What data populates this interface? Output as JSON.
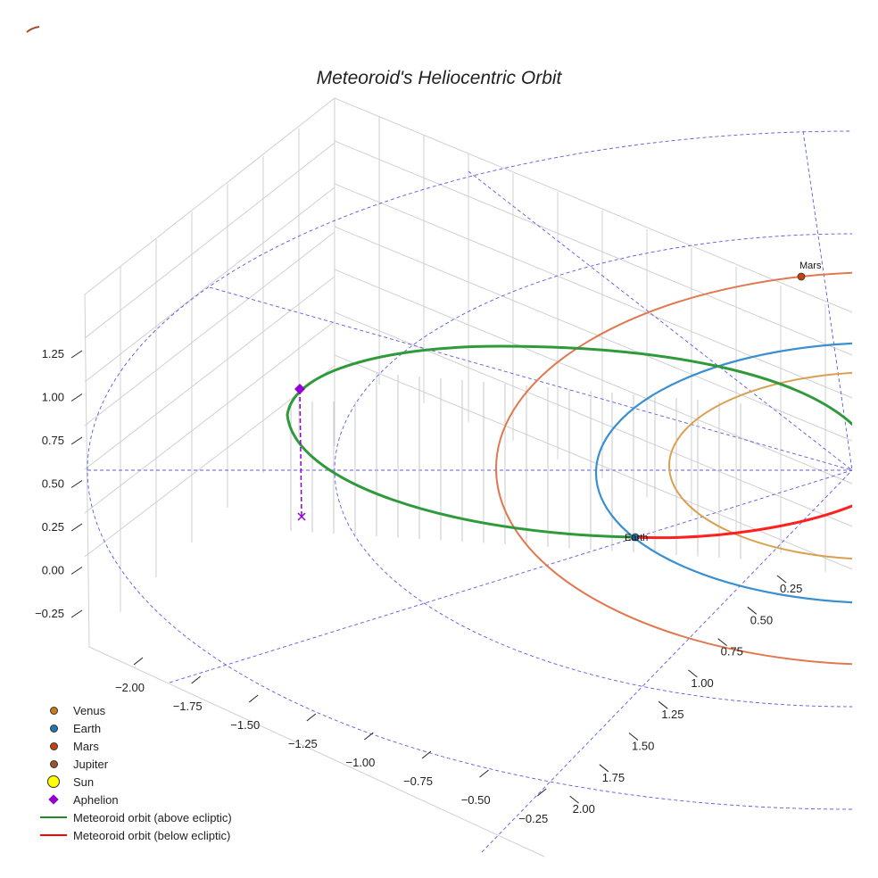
{
  "chart_data": {
    "type": "3d-line",
    "title": "Meteoroid's Heliocentric Orbit",
    "xlabel": "",
    "ylabel": "",
    "zlabel": "",
    "x_ticks": [
      "−2.00",
      "−1.75",
      "−1.50",
      "−1.25",
      "−1.00",
      "−0.75",
      "−0.50",
      "−0.25"
    ],
    "y_ticks": [
      "0.25",
      "0.50",
      "0.75",
      "1.00",
      "1.25",
      "1.50",
      "1.75",
      "2.00"
    ],
    "z_ticks": [
      "1.25",
      "1.00",
      "0.75",
      "0.50",
      "0.25",
      "0.00",
      "−0.25"
    ],
    "grid": true,
    "legend_position": "bottom-left",
    "legend": [
      {
        "label": "Venus",
        "color": "#c97a1a",
        "marker": "circle"
      },
      {
        "label": "Earth",
        "color": "#1f77b4",
        "marker": "circle"
      },
      {
        "label": "Mars",
        "color": "#c1440e",
        "marker": "circle"
      },
      {
        "label": "Jupiter",
        "color": "#a0522d",
        "marker": "circle"
      },
      {
        "label": "Sun",
        "color": "#ffff00",
        "marker": "circle-large"
      },
      {
        "label": "Aphelion",
        "color": "#9400d3",
        "marker": "diamond"
      },
      {
        "label": "Meteoroid orbit (above ecliptic)",
        "color": "#228b22",
        "marker": "line"
      },
      {
        "label": "Meteoroid orbit (below ecliptic)",
        "color": "#ff0000",
        "marker": "line"
      }
    ],
    "annotations": [
      "Mars",
      "Earth"
    ]
  }
}
